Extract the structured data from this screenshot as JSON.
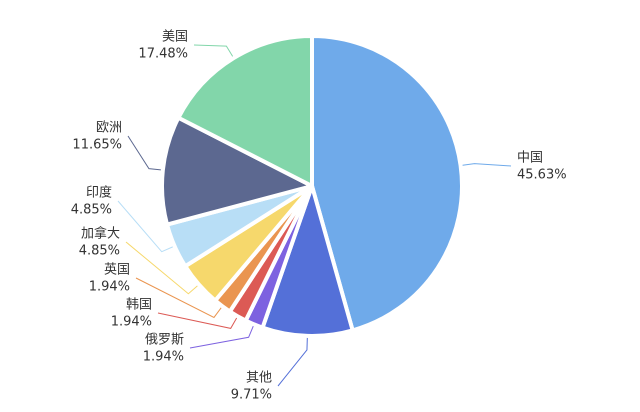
{
  "chart_data": {
    "type": "pie",
    "categories": [
      "中国",
      "其他",
      "俄罗斯",
      "韩国",
      "英国",
      "加拿大",
      "印度",
      "欧洲",
      "美国"
    ],
    "values": [
      45.63,
      9.71,
      1.94,
      1.94,
      1.94,
      4.85,
      4.85,
      11.65,
      17.48
    ],
    "value_labels": [
      "45.63%",
      "9.71%",
      "1.94%",
      "1.94%",
      "1.94%",
      "4.85%",
      "4.85%",
      "11.65%",
      "17.48%"
    ],
    "colors": [
      "#6faaea",
      "#5470d8",
      "#7d62e0",
      "#dc5a55",
      "#ea9550",
      "#f6d86c",
      "#b8def6",
      "#5c6890",
      "#82d6aa"
    ]
  }
}
